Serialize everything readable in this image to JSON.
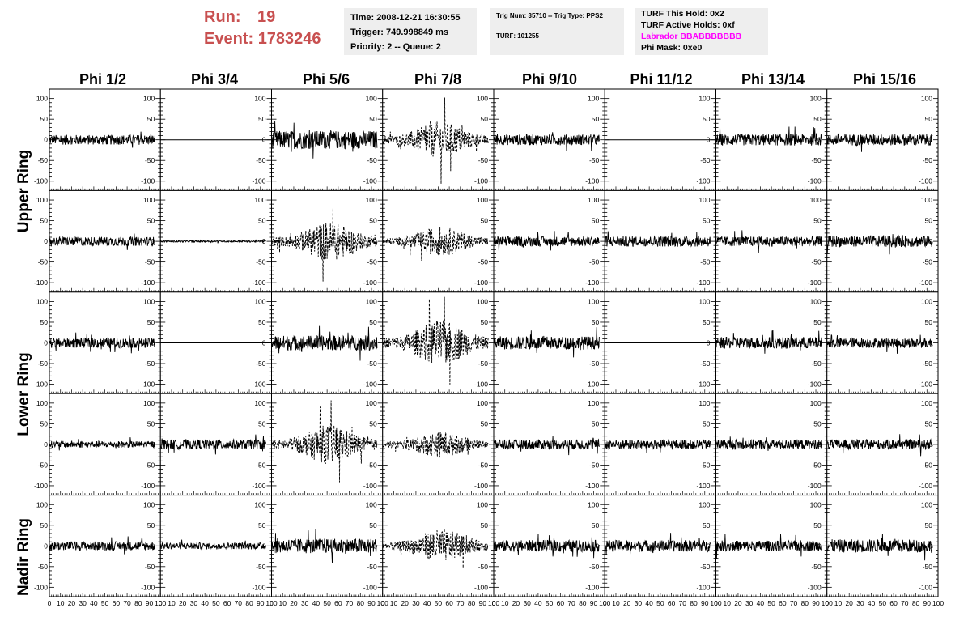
{
  "header": {
    "run_label": "Run:",
    "run_value": "19",
    "event_label": "Event:",
    "event_value": "1783246",
    "time_info": {
      "time": "Time: 2008-12-21 16:30:55",
      "trigger": "Trigger: 749.998849 ms",
      "priority": "Priority: 2 -- Queue: 2"
    },
    "trig_info": {
      "trig": "Trig Num: 35710 -- Trig Type: PPS2",
      "turf": "TURF: 101255"
    },
    "turf_info": {
      "this_hold": "TURF This Hold: 0x2",
      "active_holds": "TURF Active Holds: 0xf",
      "labrador": "Labrador BBABBBBBBB",
      "phi_mask": "Phi Mask: 0xe0"
    }
  },
  "colors": {
    "run_text": "#c85050",
    "labrador_text": "#ff00ff",
    "panel_bg": "#eeeeee"
  },
  "chart_data": {
    "type": "line",
    "columns": [
      "Phi 1/2",
      "Phi 3/4",
      "Phi 5/6",
      "Phi 7/8",
      "Phi 9/10",
      "Phi 11/12",
      "Phi 13/14",
      "Phi 15/16"
    ],
    "ring_labels": [
      "Upper Ring",
      "Lower Ring",
      "Nadir Ring"
    ],
    "rows": 5,
    "ylim": [
      -115,
      115
    ],
    "yticks": [
      -100,
      -50,
      0,
      50,
      100
    ],
    "xlim": [
      0,
      100
    ],
    "xticks": [
      0,
      10,
      20,
      30,
      40,
      50,
      60,
      70,
      80,
      90,
      100
    ],
    "panels": [
      [
        {
          "style": "solid",
          "amp": 12,
          "x_end": 95
        },
        {
          "style": "flat",
          "amp": 0,
          "x_end": 100
        },
        {
          "style": "solid",
          "amp": 22,
          "x_end": 95
        },
        {
          "style": "dashed",
          "amp": 28,
          "x_end": 95
        },
        {
          "style": "solid",
          "amp": 13,
          "x_end": 95
        },
        {
          "style": "flat",
          "amp": 0,
          "x_end": 100
        },
        {
          "style": "solid",
          "amp": 14,
          "x_end": 95
        },
        {
          "style": "solid",
          "amp": 14,
          "x_end": 95
        }
      ],
      [
        {
          "style": "solid",
          "amp": 11,
          "x_end": 95
        },
        {
          "style": "solid",
          "amp": 2,
          "x_end": 95
        },
        {
          "style": "dashed",
          "amp": 30,
          "x_end": 95
        },
        {
          "style": "dashed",
          "amp": 22,
          "x_end": 95
        },
        {
          "style": "solid",
          "amp": 12,
          "x_end": 95
        },
        {
          "style": "solid",
          "amp": 13,
          "x_end": 95
        },
        {
          "style": "solid",
          "amp": 12,
          "x_end": 95
        },
        {
          "style": "solid",
          "amp": 14,
          "x_end": 95
        }
      ],
      [
        {
          "style": "solid",
          "amp": 12,
          "x_end": 95
        },
        {
          "style": "flat",
          "amp": 0,
          "x_end": 100
        },
        {
          "style": "solid",
          "amp": 18,
          "x_end": 95
        },
        {
          "style": "dashed",
          "amp": 35,
          "x_end": 95
        },
        {
          "style": "solid",
          "amp": 16,
          "x_end": 95
        },
        {
          "style": "flat",
          "amp": 0,
          "x_end": 100
        },
        {
          "style": "solid",
          "amp": 14,
          "x_end": 95
        },
        {
          "style": "solid",
          "amp": 12,
          "x_end": 95
        }
      ],
      [
        {
          "style": "solid",
          "amp": 8,
          "x_end": 95
        },
        {
          "style": "solid",
          "amp": 12,
          "x_end": 95
        },
        {
          "style": "dashed",
          "amp": 30,
          "x_end": 95
        },
        {
          "style": "dashed",
          "amp": 20,
          "x_end": 95
        },
        {
          "style": "solid",
          "amp": 12,
          "x_end": 95
        },
        {
          "style": "solid",
          "amp": 12,
          "x_end": 95
        },
        {
          "style": "solid",
          "amp": 12,
          "x_end": 95
        },
        {
          "style": "solid",
          "amp": 12,
          "x_end": 95
        }
      ],
      [
        {
          "style": "solid",
          "amp": 11,
          "x_end": 95
        },
        {
          "style": "solid",
          "amp": 8,
          "x_end": 95
        },
        {
          "style": "solid",
          "amp": 18,
          "x_end": 95
        },
        {
          "style": "dashed",
          "amp": 25,
          "x_end": 95
        },
        {
          "style": "solid",
          "amp": 14,
          "x_end": 95
        },
        {
          "style": "solid",
          "amp": 14,
          "x_end": 95
        },
        {
          "style": "solid",
          "amp": 13,
          "x_end": 95
        },
        {
          "style": "solid",
          "amp": 16,
          "x_end": 95
        }
      ]
    ]
  }
}
